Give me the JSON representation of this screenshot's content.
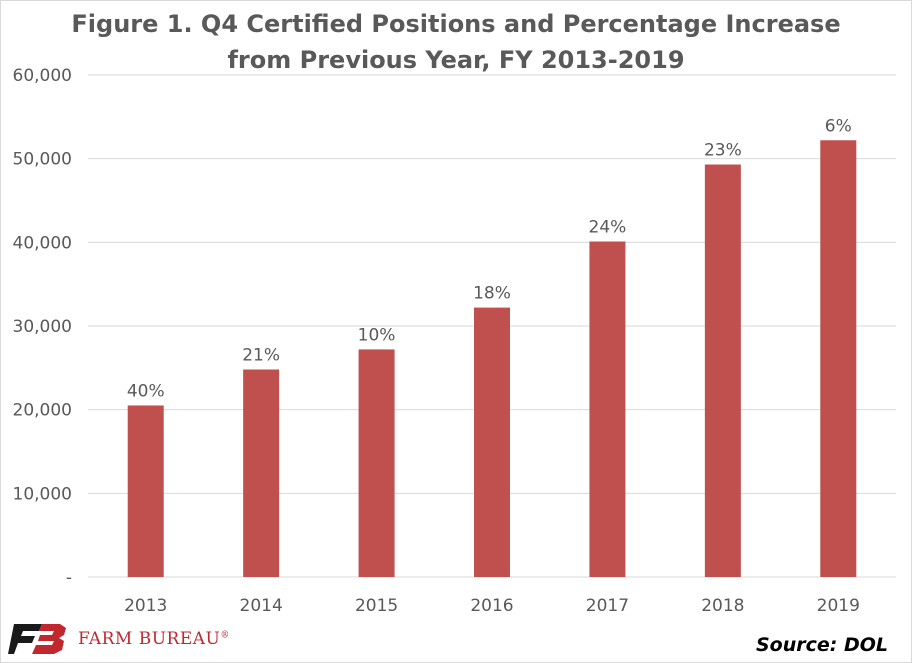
{
  "chart_data": {
    "type": "bar",
    "title_lines": [
      "Figure 1. Q4 Certified Positions and Percentage Increase",
      "from Previous Year, FY 2013-2019"
    ],
    "categories": [
      "2013",
      "2014",
      "2015",
      "2016",
      "2017",
      "2018",
      "2019"
    ],
    "values": [
      20500,
      24800,
      27200,
      32200,
      40100,
      49300,
      52200
    ],
    "data_labels": [
      "40%",
      "21%",
      "10%",
      "18%",
      "24%",
      "23%",
      "6%"
    ],
    "ylim": [
      0,
      60000
    ],
    "yticks": [
      0,
      10000,
      20000,
      30000,
      40000,
      50000,
      60000
    ],
    "ytick_labels": [
      "-",
      "10,000",
      "20,000",
      "30,000",
      "40,000",
      "50,000",
      "60,000"
    ],
    "grid": true,
    "legend": "none",
    "bar_color": "#c0504d",
    "grid_color": "#d9d9d9",
    "text_color": "#595959"
  },
  "footer": {
    "logo_text": "FARM BUREAU",
    "logo_registered": "®",
    "source": "Source: DOL"
  },
  "colors": {
    "logo_red": "#c0282d",
    "logo_dark": "#1a1a1a"
  },
  "icons": {
    "logo": "farm-bureau-logo-icon"
  }
}
